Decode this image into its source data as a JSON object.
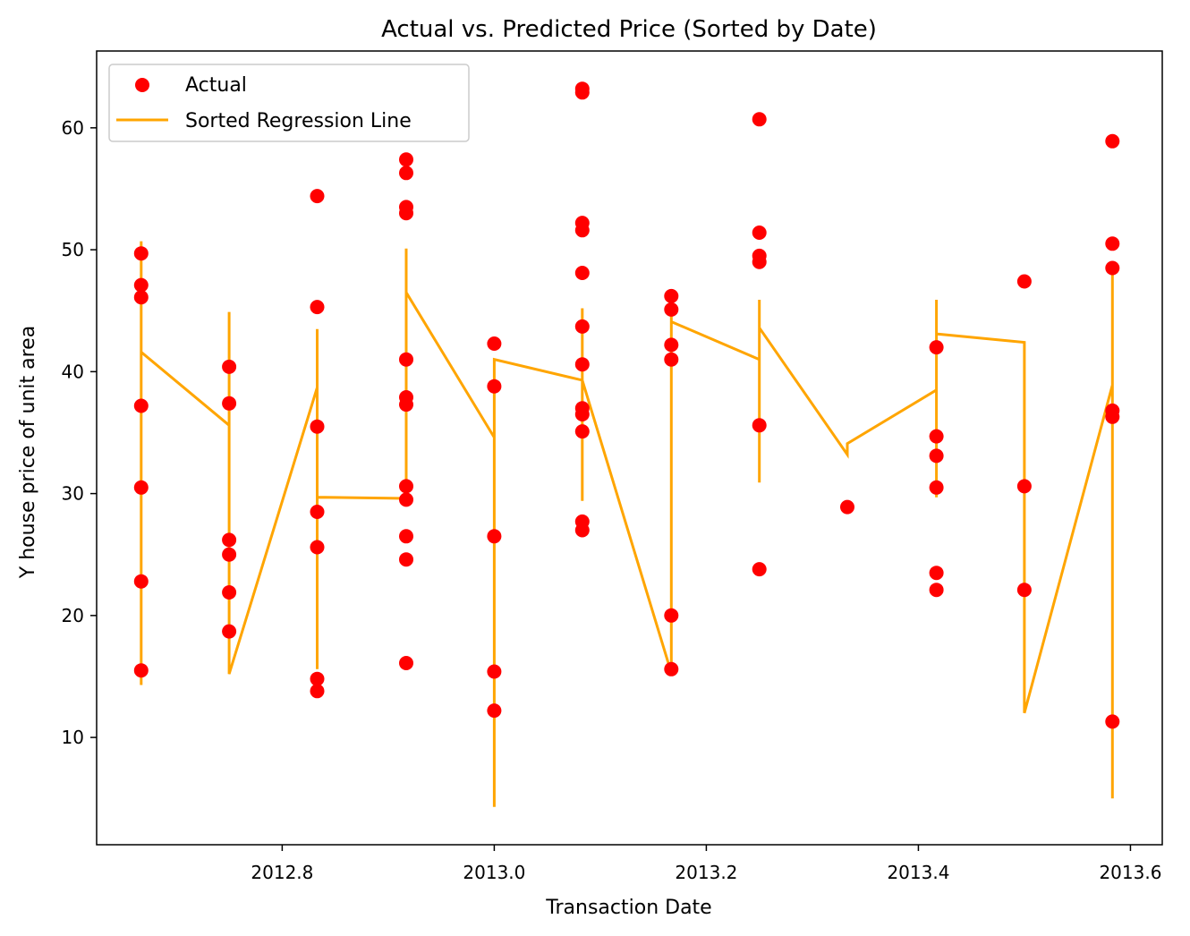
{
  "chart_data": {
    "type": "scatter",
    "title": "Actual vs. Predicted Price (Sorted by Date)",
    "xlabel": "Transaction Date",
    "ylabel": "Y house price of unit area",
    "xlim": [
      2012.625,
      2013.63
    ],
    "ylim": [
      1.2,
      66.3
    ],
    "xticks": [
      2012.8,
      2013.0,
      2013.2,
      2013.4,
      2013.6
    ],
    "xtick_labels": [
      "2012.8",
      "2013.0",
      "2013.2",
      "2013.4",
      "2013.6"
    ],
    "yticks": [
      10,
      20,
      30,
      40,
      50,
      60
    ],
    "ytick_labels": [
      "10",
      "20",
      "30",
      "40",
      "50",
      "60"
    ],
    "legend": {
      "placement": "top-left",
      "entries": [
        {
          "label": "Actual",
          "kind": "marker",
          "color": "#ff0000"
        },
        {
          "label": "Sorted Regression Line",
          "kind": "line",
          "color": "#ffa500"
        }
      ]
    },
    "series": [
      {
        "name": "Actual",
        "kind": "scatter",
        "color": "#ff0000",
        "points": [
          [
            2012.667,
            49.7
          ],
          [
            2012.667,
            47.1
          ],
          [
            2012.667,
            46.1
          ],
          [
            2012.667,
            37.2
          ],
          [
            2012.667,
            30.5
          ],
          [
            2012.667,
            22.8
          ],
          [
            2012.667,
            15.5
          ],
          [
            2012.75,
            40.4
          ],
          [
            2012.75,
            37.4
          ],
          [
            2012.75,
            26.2
          ],
          [
            2012.75,
            25.0
          ],
          [
            2012.75,
            21.9
          ],
          [
            2012.75,
            18.7
          ],
          [
            2012.833,
            54.4
          ],
          [
            2012.833,
            45.3
          ],
          [
            2012.833,
            35.5
          ],
          [
            2012.833,
            28.5
          ],
          [
            2012.833,
            25.6
          ],
          [
            2012.833,
            14.8
          ],
          [
            2012.833,
            13.8
          ],
          [
            2012.917,
            57.4
          ],
          [
            2012.917,
            56.3
          ],
          [
            2012.917,
            53.5
          ],
          [
            2012.917,
            53.0
          ],
          [
            2012.917,
            41.0
          ],
          [
            2012.917,
            37.9
          ],
          [
            2012.917,
            37.3
          ],
          [
            2012.917,
            30.6
          ],
          [
            2012.917,
            29.5
          ],
          [
            2012.917,
            26.5
          ],
          [
            2012.917,
            24.6
          ],
          [
            2012.917,
            16.1
          ],
          [
            2013.0,
            42.3
          ],
          [
            2013.0,
            38.8
          ],
          [
            2013.0,
            26.5
          ],
          [
            2013.0,
            15.4
          ],
          [
            2013.0,
            12.2
          ],
          [
            2013.083,
            63.2
          ],
          [
            2013.083,
            62.9
          ],
          [
            2013.083,
            52.2
          ],
          [
            2013.083,
            51.6
          ],
          [
            2013.083,
            48.1
          ],
          [
            2013.083,
            43.7
          ],
          [
            2013.083,
            40.6
          ],
          [
            2013.083,
            37.0
          ],
          [
            2013.083,
            36.5
          ],
          [
            2013.083,
            35.1
          ],
          [
            2013.083,
            27.7
          ],
          [
            2013.083,
            27.0
          ],
          [
            2013.167,
            46.2
          ],
          [
            2013.167,
            45.1
          ],
          [
            2013.167,
            42.2
          ],
          [
            2013.167,
            41.0
          ],
          [
            2013.167,
            20.0
          ],
          [
            2013.167,
            15.6
          ],
          [
            2013.25,
            60.7
          ],
          [
            2013.25,
            51.4
          ],
          [
            2013.25,
            49.5
          ],
          [
            2013.25,
            49.0
          ],
          [
            2013.25,
            35.6
          ],
          [
            2013.25,
            23.8
          ],
          [
            2013.333,
            28.9
          ],
          [
            2013.417,
            42.0
          ],
          [
            2013.417,
            34.7
          ],
          [
            2013.417,
            33.1
          ],
          [
            2013.417,
            30.5
          ],
          [
            2013.417,
            23.5
          ],
          [
            2013.417,
            22.1
          ],
          [
            2013.5,
            47.4
          ],
          [
            2013.5,
            30.6
          ],
          [
            2013.5,
            22.1
          ],
          [
            2013.583,
            58.9
          ],
          [
            2013.583,
            50.5
          ],
          [
            2013.583,
            48.5
          ],
          [
            2013.583,
            36.8
          ],
          [
            2013.583,
            36.3
          ],
          [
            2013.583,
            11.3
          ]
        ]
      },
      {
        "name": "Sorted Regression Line",
        "kind": "line",
        "color": "#ffa500",
        "points": [
          [
            2012.667,
            41.6
          ],
          [
            2012.667,
            50.7
          ],
          [
            2012.667,
            14.3
          ],
          [
            2012.667,
            41.6
          ],
          [
            2012.75,
            35.6
          ],
          [
            2012.75,
            44.9
          ],
          [
            2012.75,
            34.3
          ],
          [
            2012.75,
            44.9
          ],
          [
            2012.75,
            15.2
          ],
          [
            2012.833,
            38.7
          ],
          [
            2012.833,
            43.5
          ],
          [
            2012.833,
            15.6
          ],
          [
            2012.833,
            29.7
          ],
          [
            2012.917,
            29.6
          ],
          [
            2012.917,
            31.3
          ],
          [
            2012.917,
            34.6
          ],
          [
            2012.917,
            50.1
          ],
          [
            2012.917,
            46.5
          ],
          [
            2013.0,
            34.6
          ],
          [
            2013.0,
            4.3
          ],
          [
            2013.0,
            41.0
          ],
          [
            2013.083,
            39.3
          ],
          [
            2013.083,
            45.2
          ],
          [
            2013.083,
            29.4
          ],
          [
            2013.083,
            39.3
          ],
          [
            2013.167,
            15.3
          ],
          [
            2013.167,
            45.8
          ],
          [
            2013.167,
            44.1
          ],
          [
            2013.25,
            41.0
          ],
          [
            2013.25,
            30.9
          ],
          [
            2013.25,
            45.9
          ],
          [
            2013.25,
            43.6
          ],
          [
            2013.333,
            33.2
          ],
          [
            2013.333,
            34.1
          ],
          [
            2013.417,
            38.5
          ],
          [
            2013.417,
            29.7
          ],
          [
            2013.417,
            45.9
          ],
          [
            2013.417,
            43.1
          ],
          [
            2013.5,
            42.4
          ],
          [
            2013.5,
            28.7
          ],
          [
            2013.5,
            12.0
          ],
          [
            2013.583,
            38.9
          ],
          [
            2013.583,
            5.0
          ],
          [
            2013.583,
            48.1
          ],
          [
            2013.583,
            38.9
          ]
        ]
      }
    ]
  }
}
